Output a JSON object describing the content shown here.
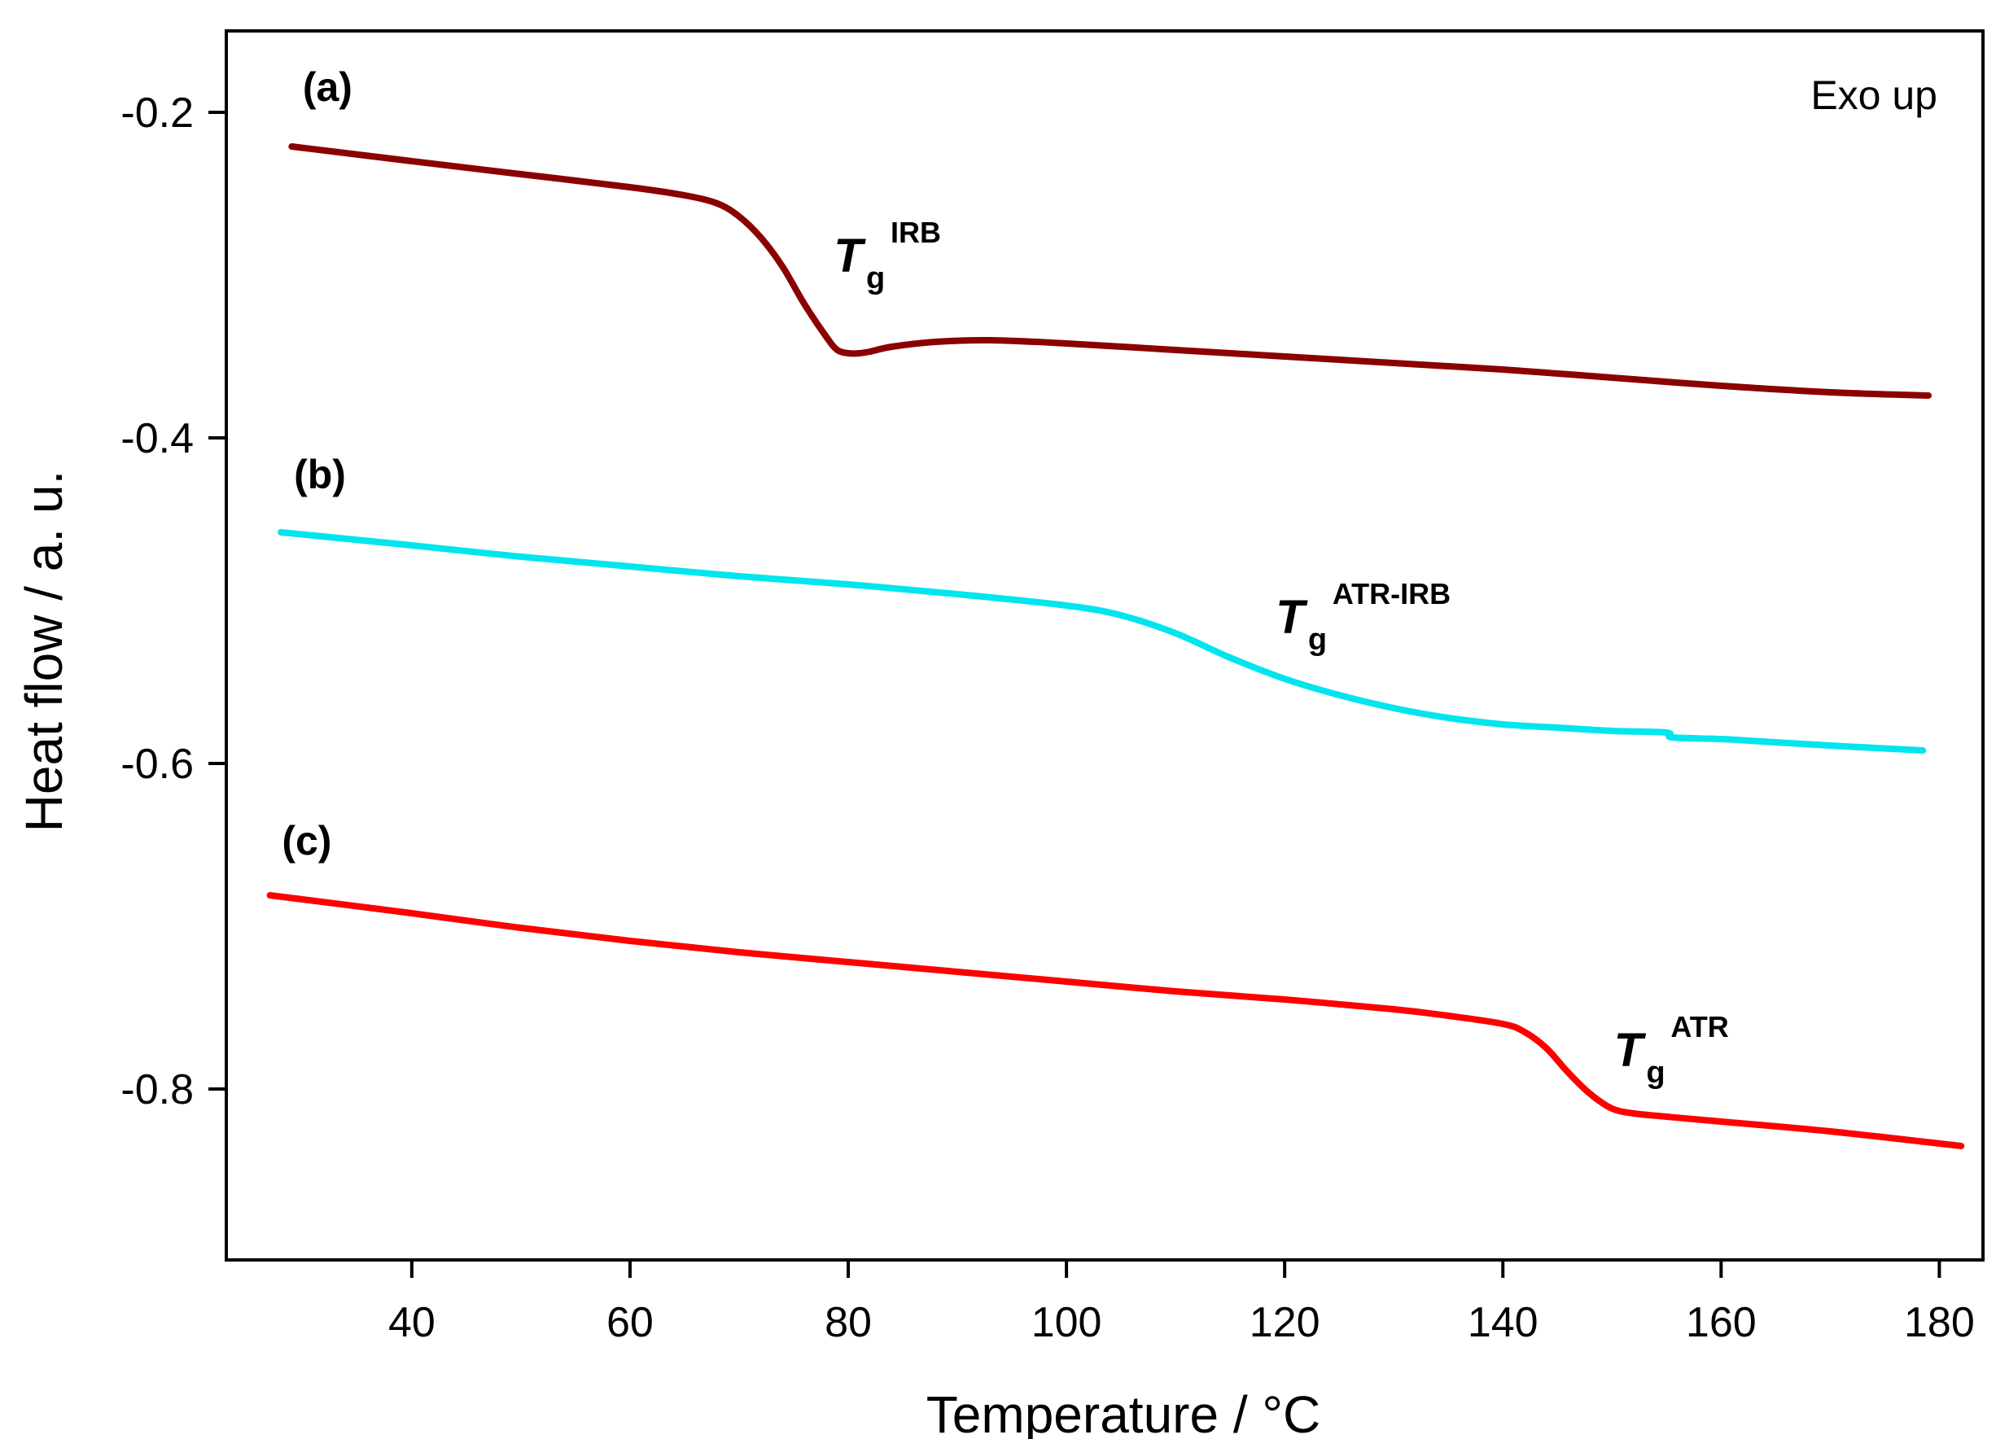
{
  "chart_data": {
    "type": "line",
    "title": "",
    "xlabel": "Temperature / °C",
    "ylabel": "Heat flow / a. u.",
    "corner_note": "Exo up",
    "xlim": [
      23,
      184
    ],
    "ylim": [
      -0.905,
      -0.15
    ],
    "x_ticks": [
      40,
      60,
      80,
      100,
      120,
      140,
      160,
      180
    ],
    "x_tick_labels": [
      "40",
      "60",
      "80",
      "100",
      "120",
      "140",
      "160",
      "180"
    ],
    "y_ticks": [
      -0.2,
      -0.4,
      -0.6,
      -0.8
    ],
    "y_tick_labels": [
      "-0.2",
      "-0.4",
      "-0.6",
      "-0.8"
    ],
    "grid": false,
    "series": [
      {
        "name": "(a)",
        "color": "#8b0000",
        "x": [
          29,
          40,
          50,
          60,
          65,
          68,
          70,
          72,
          74,
          76,
          78,
          79,
          80,
          81,
          82,
          84,
          88,
          93,
          100,
          110,
          120,
          130,
          140,
          150,
          160,
          170,
          179
        ],
        "y": [
          -0.221,
          -0.23,
          -0.238,
          -0.246,
          -0.251,
          -0.256,
          -0.264,
          -0.277,
          -0.295,
          -0.318,
          -0.338,
          -0.346,
          -0.348,
          -0.348,
          -0.347,
          -0.344,
          -0.341,
          -0.34,
          -0.342,
          -0.346,
          -0.35,
          -0.354,
          -0.358,
          -0.363,
          -0.368,
          -0.372,
          -0.374
        ]
      },
      {
        "name": "(b)",
        "color": "#00e5ee",
        "x": [
          28,
          40,
          50,
          60,
          70,
          80,
          90,
          100,
          105,
          110,
          115,
          120,
          125,
          130,
          135,
          140,
          145,
          150,
          155,
          155.5,
          160,
          165,
          170,
          178.5
        ],
        "y": [
          -0.458,
          -0.466,
          -0.473,
          -0.479,
          -0.485,
          -0.49,
          -0.496,
          -0.503,
          -0.509,
          -0.52,
          -0.535,
          -0.548,
          -0.558,
          -0.566,
          -0.572,
          -0.576,
          -0.578,
          -0.58,
          -0.581,
          -0.584,
          -0.585,
          -0.587,
          -0.589,
          -0.592
        ]
      },
      {
        "name": "(c)",
        "color": "#ff0000",
        "x": [
          27,
          40,
          50,
          60,
          70,
          80,
          90,
          100,
          110,
          120,
          130,
          135,
          140,
          142,
          144,
          146,
          148,
          150,
          152,
          155,
          160,
          170,
          182
        ],
        "y": [
          -0.681,
          -0.692,
          -0.701,
          -0.709,
          -0.716,
          -0.722,
          -0.728,
          -0.734,
          -0.74,
          -0.745,
          -0.751,
          -0.755,
          -0.76,
          -0.765,
          -0.775,
          -0.79,
          -0.803,
          -0.812,
          -0.815,
          -0.817,
          -0.82,
          -0.826,
          -0.835
        ]
      }
    ],
    "annotations": [
      {
        "id": "tg-a",
        "main": "T",
        "sub": "g",
        "sup": "IRB",
        "x": 80,
        "y": -0.298
      },
      {
        "id": "tg-b",
        "main": "T",
        "sub": "g",
        "sup": "ATR-IRB",
        "x": 120.5,
        "y": -0.52
      },
      {
        "id": "tg-c",
        "main": "T",
        "sub": "g",
        "sup": "ATR",
        "x": 151.5,
        "y": -0.786
      }
    ],
    "panel_labels": [
      {
        "id": "label-a",
        "text": "(a)",
        "x": 30,
        "y": -0.193
      },
      {
        "id": "label-b",
        "text": "(b)",
        "x": 29.2,
        "y": -0.431
      },
      {
        "id": "label-c",
        "text": "(c)",
        "x": 28.1,
        "y": -0.656
      }
    ]
  }
}
